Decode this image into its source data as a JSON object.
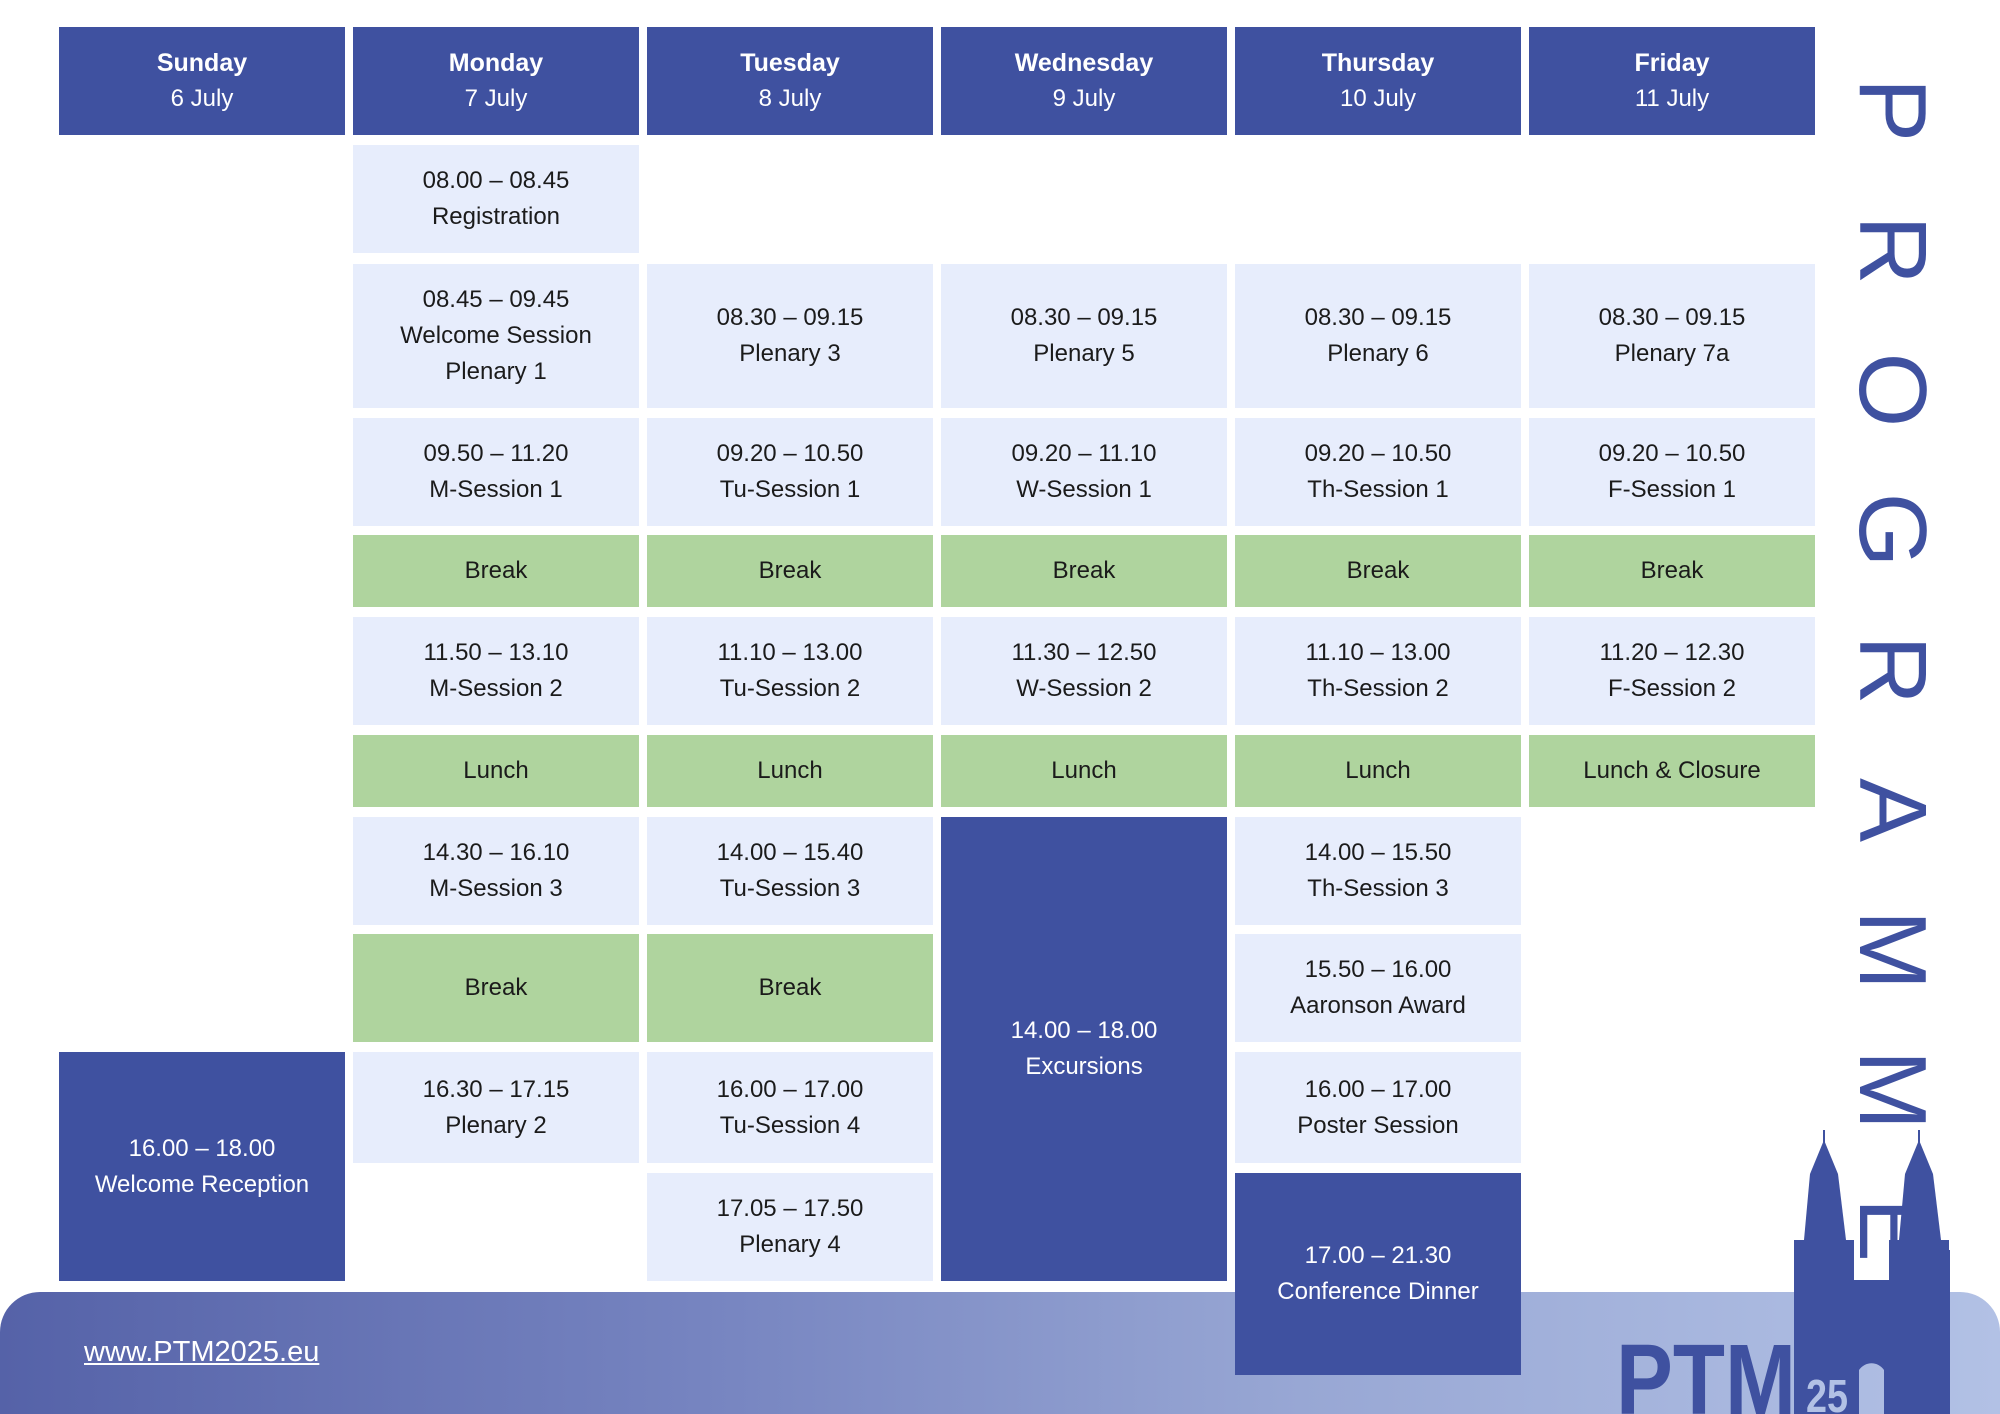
{
  "days": [
    {
      "name": "Sunday",
      "date": "6 July"
    },
    {
      "name": "Monday",
      "date": "7 July"
    },
    {
      "name": "Tuesday",
      "date": "8 July"
    },
    {
      "name": "Wednesday",
      "date": "9 July"
    },
    {
      "name": "Thursday",
      "date": "10 July"
    },
    {
      "name": "Friday",
      "date": "11 July"
    }
  ],
  "sessions": {
    "sun_reception": {
      "time": "16.00 – 18.00",
      "title": "Welcome Reception"
    },
    "mon_registration": {
      "time": "08.00 – 08.45",
      "title": "Registration"
    },
    "mon_welcome": {
      "time": "08.45 – 09.45",
      "title": "Welcome Session",
      "subtitle": "Plenary 1"
    },
    "mon_session1": {
      "time": "09.50 – 11.20",
      "title": "M-Session 1"
    },
    "mon_break1": {
      "title": "Break"
    },
    "mon_session2": {
      "time": "11.50 – 13.10",
      "title": "M-Session 2"
    },
    "mon_lunch": {
      "title": "Lunch"
    },
    "mon_session3": {
      "time": "14.30 – 16.10",
      "title": "M-Session 3"
    },
    "mon_break2": {
      "title": "Break"
    },
    "mon_plenary2": {
      "time": "16.30 – 17.15",
      "title": "Plenary 2"
    },
    "tue_plenary3": {
      "time": "08.30 – 09.15",
      "title": "Plenary 3"
    },
    "tue_session1": {
      "time": "09.20 – 10.50",
      "title": "Tu-Session 1"
    },
    "tue_break1": {
      "title": "Break"
    },
    "tue_session2": {
      "time": "11.10 – 13.00",
      "title": "Tu-Session 2"
    },
    "tue_lunch": {
      "title": "Lunch"
    },
    "tue_session3": {
      "time": "14.00 – 15.40",
      "title": "Tu-Session 3"
    },
    "tue_break2": {
      "title": "Break"
    },
    "tue_session4": {
      "time": "16.00 – 17.00",
      "title": "Tu-Session 4"
    },
    "tue_plenary4": {
      "time": "17.05 – 17.50",
      "title": "Plenary 4"
    },
    "wed_plenary5": {
      "time": "08.30 – 09.15",
      "title": "Plenary 5"
    },
    "wed_session1": {
      "time": "09.20 – 11.10",
      "title": "W-Session 1"
    },
    "wed_break1": {
      "title": "Break"
    },
    "wed_session2": {
      "time": "11.30 – 12.50",
      "title": "W-Session 2"
    },
    "wed_lunch": {
      "title": "Lunch"
    },
    "wed_excursions": {
      "time": "14.00 – 18.00",
      "title": "Excursions"
    },
    "thu_plenary6": {
      "time": "08.30 – 09.15",
      "title": "Plenary 6"
    },
    "thu_session1": {
      "time": "09.20 – 10.50",
      "title": "Th-Session 1"
    },
    "thu_break1": {
      "title": "Break"
    },
    "thu_session2": {
      "time": "11.10 – 13.00",
      "title": "Th-Session 2"
    },
    "thu_lunch": {
      "title": "Lunch"
    },
    "thu_session3": {
      "time": "14.00 – 15.50",
      "title": "Th-Session 3"
    },
    "thu_award": {
      "time": "15.50 – 16.00",
      "title": "Aaronson Award"
    },
    "thu_poster": {
      "time": "16.00 – 17.00",
      "title": "Poster Session"
    },
    "thu_dinner": {
      "time": "17.00 – 21.30",
      "title": "Conference Dinner"
    },
    "fri_plenary7a": {
      "time": "08.30 – 09.15",
      "title": "Plenary 7a"
    },
    "fri_session1": {
      "time": "09.20 – 10.50",
      "title": "F-Session 1"
    },
    "fri_break1": {
      "title": "Break"
    },
    "fri_session2": {
      "time": "11.20 – 12.30",
      "title": "F-Session 2"
    },
    "fri_lunch": {
      "title": "Lunch & Closure"
    }
  },
  "side_title": [
    "P",
    "R",
    "O",
    "G",
    "R",
    "A",
    "M",
    "M",
    "E"
  ],
  "footer": {
    "url": "www.PTM2025.eu"
  },
  "logo": {
    "text": "PTM",
    "superscript": "25",
    "icon": "castle-gate-icon"
  },
  "colors": {
    "primary": "#3f51a0",
    "session_bg": "#e7edfc",
    "break_bg": "#afd49e"
  }
}
